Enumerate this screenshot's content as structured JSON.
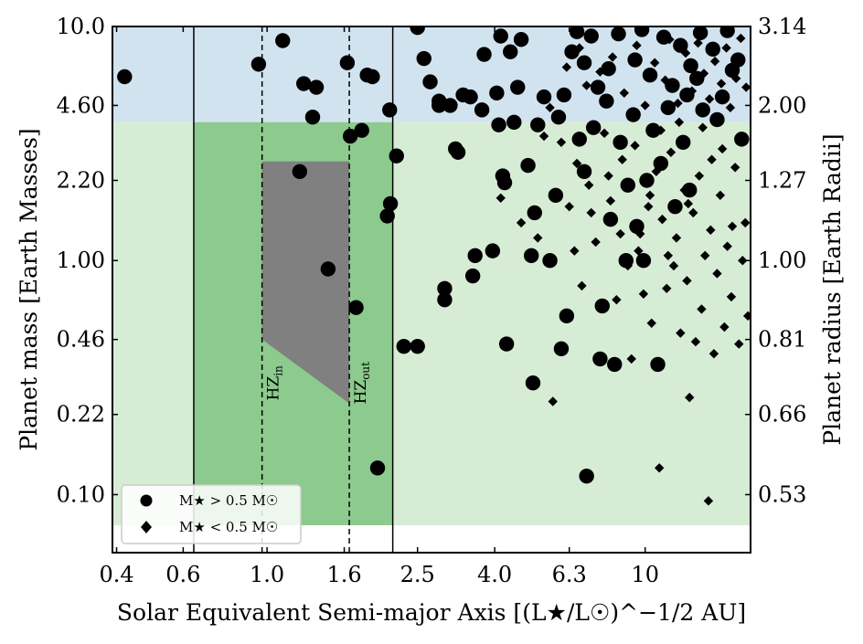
{
  "chart_data": {
    "type": "scatter",
    "xlabel": "Solar Equivalent Semi-major Axis [(L★/L☉)^−1/2 AU]",
    "ylabel": "Planet mass [Earth Masses]",
    "y2label": "Planet radius [Earth Radii]",
    "x_scale": "log",
    "y_scale": "log",
    "xlim": [
      0.39,
      19.0
    ],
    "ylim": [
      0.0565,
      10.0
    ],
    "xticks": [
      0.4,
      0.6,
      1.0,
      1.6,
      2.5,
      4.0,
      6.3,
      10
    ],
    "xtick_labels": [
      "0.4",
      "0.6",
      "1.0",
      "1.6",
      "2.5",
      "4.0",
      "6.3",
      "10"
    ],
    "yticks": [
      0.1,
      0.22,
      0.46,
      1.0,
      2.2,
      4.6,
      10.0
    ],
    "ytick_labels": [
      "0.10",
      "0.22",
      "0.46",
      "1.00",
      "2.20",
      "4.60",
      "10.0"
    ],
    "y2tick_labels": [
      "0.53",
      "0.66",
      "0.81",
      "1.00",
      "1.27",
      "2.00",
      "3.14"
    ],
    "regions": {
      "light_blue_mass_range": [
        3.9,
        10.0
      ],
      "light_green_mass_range": [
        0.074,
        3.9
      ],
      "green_box_x_range": [
        0.64,
        2.15
      ],
      "green_box_mass_range": [
        0.074,
        3.9
      ],
      "hz_polygon": [
        [
          0.97,
          2.65
        ],
        [
          1.65,
          2.65
        ],
        [
          1.65,
          0.245
        ],
        [
          0.97,
          0.46
        ]
      ]
    },
    "vlines_solid": [
      0.64,
      2.15
    ],
    "vlines_dashed": [
      0.97,
      1.65
    ],
    "hz_labels": {
      "hz_in": "HZ",
      "hz_in_sub": "in",
      "hz_out": "HZ",
      "hz_out_sub": "out"
    },
    "colors": {
      "light_blue": "#d2e3f0",
      "light_green": "#d7ecd5",
      "green": "#8cca8d",
      "gray": "#808080",
      "points": "#000000"
    },
    "legend": {
      "placement": "lower-left",
      "entries": [
        {
          "marker": "circle",
          "label_main": "M★ > 0.5 M☉"
        },
        {
          "marker": "diamond",
          "label_main": "M★ < 0.5 M☉"
        }
      ]
    },
    "series": [
      {
        "name": "M★ > 0.5 M☉",
        "marker": "circle",
        "points": [
          [
            0.42,
            6.1
          ],
          [
            0.95,
            6.9
          ],
          [
            1.1,
            8.7
          ],
          [
            1.25,
            5.7
          ],
          [
            1.35,
            5.5
          ],
          [
            1.32,
            4.1
          ],
          [
            1.22,
            2.4
          ],
          [
            1.45,
            0.92
          ],
          [
            1.63,
            7.0
          ],
          [
            1.66,
            3.4
          ],
          [
            1.78,
            3.6
          ],
          [
            1.84,
            6.2
          ],
          [
            1.9,
            6.1
          ],
          [
            1.72,
            0.63
          ],
          [
            1.96,
            0.13
          ],
          [
            2.08,
            1.55
          ],
          [
            2.12,
            1.75
          ],
          [
            2.11,
            4.4
          ],
          [
            2.2,
            2.8
          ],
          [
            2.3,
            0.43
          ],
          [
            2.5,
            0.43
          ],
          [
            2.5,
            9.9
          ],
          [
            2.6,
            7.3
          ],
          [
            2.7,
            5.8
          ],
          [
            2.85,
            4.8
          ],
          [
            2.85,
            4.6
          ],
          [
            2.95,
            0.76
          ],
          [
            2.95,
            0.68
          ],
          [
            3.05,
            4.6
          ],
          [
            3.15,
            3.0
          ],
          [
            3.2,
            2.9
          ],
          [
            3.3,
            5.1
          ],
          [
            3.45,
            5.0
          ],
          [
            3.5,
            0.86
          ],
          [
            3.55,
            1.05
          ],
          [
            3.7,
            4.4
          ],
          [
            3.75,
            7.6
          ],
          [
            3.95,
            1.1
          ],
          [
            4.05,
            5.2
          ],
          [
            4.1,
            3.8
          ],
          [
            4.15,
            9.1
          ],
          [
            4.2,
            2.3
          ],
          [
            4.25,
            2.15
          ],
          [
            4.3,
            0.44
          ],
          [
            4.4,
            7.8
          ],
          [
            4.5,
            3.9
          ],
          [
            4.6,
            5.5
          ],
          [
            4.7,
            8.8
          ],
          [
            4.9,
            2.55
          ],
          [
            5.0,
            1.05
          ],
          [
            5.05,
            0.3
          ],
          [
            5.1,
            1.6
          ],
          [
            5.2,
            3.8
          ],
          [
            5.4,
            5.0
          ],
          [
            5.6,
            1.0
          ],
          [
            5.8,
            1.9
          ],
          [
            5.9,
            4.1
          ],
          [
            6.0,
            0.42
          ],
          [
            6.1,
            5.1
          ],
          [
            6.2,
            0.58
          ],
          [
            6.4,
            7.8
          ],
          [
            6.7,
            3.3
          ],
          [
            6.9,
            2.4
          ],
          [
            7.0,
            0.12
          ],
          [
            7.3,
            3.7
          ],
          [
            7.5,
            5.5
          ],
          [
            7.6,
            0.38
          ],
          [
            7.7,
            0.64
          ],
          [
            7.9,
            4.8
          ],
          [
            8.1,
            1.5
          ],
          [
            8.3,
            0.36
          ],
          [
            8.6,
            3.2
          ],
          [
            8.9,
            1.0
          ],
          [
            9.0,
            2.1
          ],
          [
            9.3,
            4.2
          ],
          [
            9.5,
            1.4
          ],
          [
            9.9,
            1.0
          ],
          [
            10.1,
            2.2
          ],
          [
            10.5,
            3.6
          ],
          [
            10.8,
            0.36
          ],
          [
            11.0,
            2.6
          ],
          [
            11.5,
            4.5
          ],
          [
            12.0,
            1.7
          ],
          [
            12.6,
            3.2
          ],
          [
            13.1,
            2.0
          ],
          [
            13.7,
            6.0
          ],
          [
            14.2,
            4.4
          ],
          [
            15.1,
            8.0
          ],
          [
            16.0,
            5.0
          ],
          [
            17.0,
            6.5
          ],
          [
            18.0,
            3.3
          ],
          [
            6.6,
            9.5
          ],
          [
            7.2,
            9.1
          ],
          [
            8.5,
            9.3
          ],
          [
            9.8,
            9.7
          ],
          [
            11.2,
            9.0
          ],
          [
            12.4,
            8.3
          ],
          [
            14.0,
            9.4
          ],
          [
            16.5,
            9.6
          ],
          [
            17.6,
            7.2
          ],
          [
            9.4,
            7.2
          ],
          [
            10.3,
            6.2
          ],
          [
            11.8,
            5.6
          ],
          [
            13.2,
            6.8
          ],
          [
            15.5,
            4.0
          ],
          [
            8.0,
            6.6
          ],
          [
            6.9,
            7.0
          ],
          [
            12.9,
            5.1
          ]
        ]
      },
      {
        "name": "M★ < 0.5 M☉",
        "marker": "diamond",
        "points": [
          [
            4.15,
            1.85
          ],
          [
            4.7,
            1.45
          ],
          [
            5.2,
            1.25
          ],
          [
            5.7,
            0.25
          ],
          [
            6.0,
            3.2
          ],
          [
            6.3,
            1.7
          ],
          [
            6.5,
            1.1
          ],
          [
            6.8,
            0.78
          ],
          [
            7.1,
            2.1
          ],
          [
            7.4,
            1.2
          ],
          [
            7.8,
            3.5
          ],
          [
            8.1,
            1.8
          ],
          [
            8.4,
            0.68
          ],
          [
            8.7,
            2.7
          ],
          [
            9.0,
            0.95
          ],
          [
            9.2,
            0.38
          ],
          [
            9.4,
            3.1
          ],
          [
            9.7,
            1.3
          ],
          [
            9.9,
            0.72
          ],
          [
            10.2,
            1.7
          ],
          [
            10.4,
            0.54
          ],
          [
            10.7,
            2.4
          ],
          [
            10.9,
            0.13
          ],
          [
            11.1,
            1.5
          ],
          [
            11.4,
            0.76
          ],
          [
            11.7,
            2.9
          ],
          [
            11.9,
            0.95
          ],
          [
            12.1,
            1.25
          ],
          [
            12.4,
            0.49
          ],
          [
            12.7,
            2.0
          ],
          [
            12.9,
            0.82
          ],
          [
            13.1,
            0.26
          ],
          [
            13.4,
            1.6
          ],
          [
            13.6,
            0.45
          ],
          [
            13.9,
            2.3
          ],
          [
            14.1,
            0.62
          ],
          [
            14.4,
            1.05
          ],
          [
            14.7,
            0.094
          ],
          [
            14.9,
            1.35
          ],
          [
            15.2,
            0.4
          ],
          [
            15.5,
            0.88
          ],
          [
            15.8,
            1.9
          ],
          [
            16.2,
            0.52
          ],
          [
            16.5,
            1.15
          ],
          [
            16.9,
            0.7
          ],
          [
            17.3,
            2.5
          ],
          [
            17.7,
            0.44
          ],
          [
            18.1,
            1.0
          ],
          [
            18.4,
            1.45
          ],
          [
            18.7,
            0.58
          ],
          [
            7.0,
            5.6
          ],
          [
            7.6,
            6.4
          ],
          [
            8.2,
            7.4
          ],
          [
            8.8,
            5.2
          ],
          [
            9.5,
            8.3
          ],
          [
            10.0,
            4.6
          ],
          [
            10.6,
            7.0
          ],
          [
            11.3,
            5.9
          ],
          [
            11.6,
            8.8
          ],
          [
            12.2,
            4.7
          ],
          [
            12.8,
            7.7
          ],
          [
            13.3,
            5.3
          ],
          [
            13.8,
            8.5
          ],
          [
            14.3,
            6.3
          ],
          [
            14.8,
            4.9
          ],
          [
            15.3,
            7.1
          ],
          [
            15.9,
            5.7
          ],
          [
            16.4,
            8.1
          ],
          [
            16.8,
            4.5
          ],
          [
            17.4,
            6.0
          ],
          [
            17.9,
            8.9
          ],
          [
            18.5,
            5.5
          ],
          [
            6.2,
            6.7
          ],
          [
            6.7,
            8.1
          ],
          [
            5.6,
            4.5
          ],
          [
            5.4,
            3.4
          ],
          [
            6.6,
            2.6
          ],
          [
            7.2,
            1.6
          ],
          [
            8.0,
            2.3
          ],
          [
            8.6,
            1.3
          ],
          [
            9.6,
            1.1
          ],
          [
            10.3,
            1.9
          ],
          [
            11.0,
            3.6
          ],
          [
            11.5,
            1.05
          ],
          [
            12.3,
            3.9
          ],
          [
            13.0,
            1.75
          ],
          [
            14.2,
            3.7
          ],
          [
            15.0,
            2.7
          ],
          [
            16.0,
            3.0
          ],
          [
            17.0,
            1.4
          ]
        ]
      }
    ]
  }
}
